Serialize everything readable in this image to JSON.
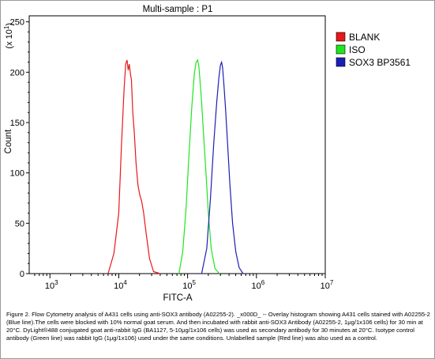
{
  "chart_data": {
    "type": "line",
    "title": "Multi-sample : P1",
    "xlabel": "FITC-A",
    "ylabel": "Count",
    "y_multiplier_label": "(x 10",
    "y_multiplier_exp": "1",
    "y_multiplier_close": ")",
    "x_scale": "log",
    "xlim": [
      500,
      10000000
    ],
    "ylim": [
      0,
      256
    ],
    "x_tick_base": "10",
    "x_ticks": [
      {
        "value": 1000,
        "exp": "3"
      },
      {
        "value": 10000,
        "exp": "4"
      },
      {
        "value": 100000,
        "exp": "5"
      },
      {
        "value": 1000000,
        "exp": "6"
      },
      {
        "value": 10000000,
        "exp": "7"
      }
    ],
    "y_ticks": [
      {
        "value": 0,
        "label": "0"
      },
      {
        "value": 50,
        "label": "50"
      },
      {
        "value": 100,
        "label": "100"
      },
      {
        "value": 150,
        "label": "150"
      },
      {
        "value": 200,
        "label": "200"
      },
      {
        "value": 250,
        "label": "250"
      }
    ],
    "grid": false,
    "legend_position": "right",
    "series": [
      {
        "name": "BLANK",
        "color": "#e8171b",
        "x": [
          7000,
          8500,
          10000,
          11000,
          12000,
          12600,
          13200,
          13700,
          14200,
          14800,
          15300,
          16000,
          16800,
          17800,
          19000,
          20200,
          21500,
          23000,
          25000,
          28000,
          32000,
          40000
        ],
        "y": [
          0,
          20,
          60,
          130,
          185,
          208,
          212,
          202,
          208,
          198,
          192,
          160,
          140,
          110,
          88,
          78,
          72,
          60,
          40,
          15,
          2,
          0
        ]
      },
      {
        "name": "ISO",
        "color": "#1ee61e",
        "x": [
          75000,
          85000,
          95000,
          105000,
          115000,
          125000,
          133000,
          140000,
          146000,
          152000,
          160000,
          170000,
          185000,
          200000,
          220000,
          250000,
          290000
        ],
        "y": [
          0,
          22,
          65,
          120,
          165,
          198,
          210,
          212,
          205,
          190,
          170,
          140,
          100,
          60,
          25,
          5,
          0
        ]
      },
      {
        "name": "SOX3 BP3561",
        "color": "#1a20b4",
        "x": [
          160000,
          190000,
          215000,
          240000,
          265000,
          285000,
          300000,
          312000,
          322000,
          335000,
          355000,
          380000,
          410000,
          450000,
          500000,
          560000,
          640000
        ],
        "y": [
          0,
          25,
          75,
          130,
          170,
          195,
          207,
          210,
          205,
          190,
          165,
          130,
          90,
          50,
          22,
          6,
          0
        ]
      }
    ]
  },
  "caption": "Figure 2. Flow Cytometry analysis of A431 cells using anti-SOX3 antibody (A02255-2). _x000D_ -- Overlay histogram showing A431 cells stained with A02255-2 (Blue line).The cells were blocked with 10% normal goat serum. And then incubated with rabbit anti-SOX3 Antibody (A02255-2, 1μg/1x106 cells) for 30 min at 20°C. DyLight®488 conjugated goat anti-rabbit IgG (BA1127, 5-10μg/1x106 cells) was used as secondary antibody for 30 minutes at 20°C. Isotype control antibody (Green line) was rabbit IgG (1μg/1x106) used under the same conditions. Unlabelled sample (Red line) was also used as a control."
}
